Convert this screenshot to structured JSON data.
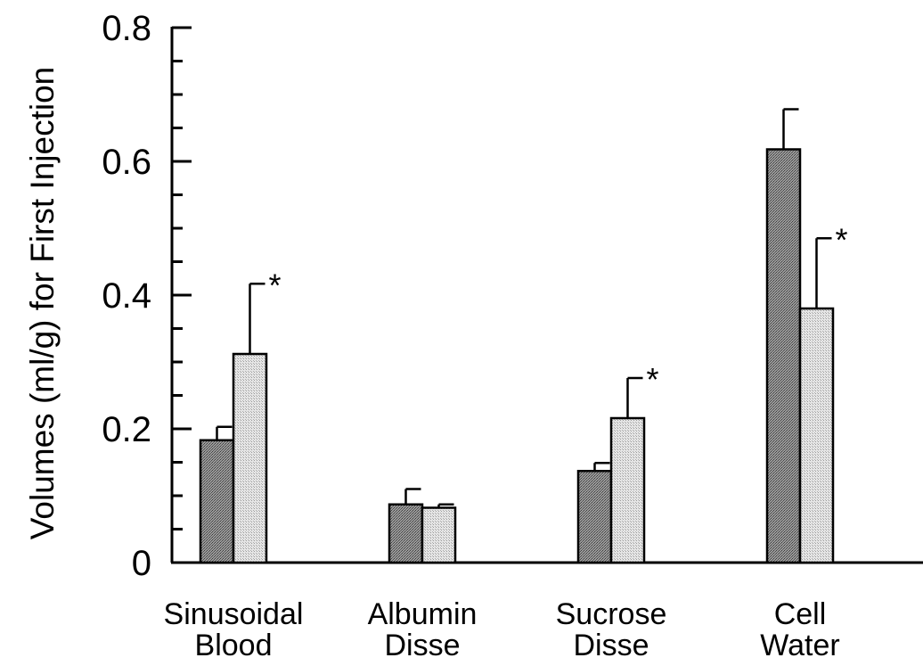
{
  "chart_data": {
    "type": "bar",
    "title": "",
    "xlabel": "",
    "ylabel": "Volumes (ml/g) for First Injection",
    "ylim": [
      0,
      0.8
    ],
    "yticks": [
      {
        "value": 0,
        "label": "0"
      },
      {
        "value": 0.2,
        "label": "0.2"
      },
      {
        "value": 0.4,
        "label": "0.4"
      },
      {
        "value": 0.6,
        "label": "0.6"
      },
      {
        "value": 0.8,
        "label": "0.8"
      }
    ],
    "y_minor_step": 0.05,
    "grid": false,
    "legend": "none",
    "categories": [
      [
        "Sinusoidal",
        "Blood"
      ],
      [
        "Albumin",
        "Disse"
      ],
      [
        "Sucrose",
        "Disse"
      ],
      [
        "Cell",
        "Water"
      ]
    ],
    "series": [
      {
        "values": [
          0.183,
          0.087,
          0.137,
          0.618
        ],
        "errors": [
          0.02,
          0.023,
          0.012,
          0.06
        ],
        "color": "#8a8a8a"
      },
      {
        "values": [
          0.312,
          0.082,
          0.216,
          0.38
        ],
        "errors": [
          0.105,
          0.005,
          0.06,
          0.105
        ],
        "color": "#dcdcdc"
      }
    ],
    "annotations": [
      {
        "text": "*",
        "category": 0,
        "series": 1
      },
      {
        "text": "*",
        "category": 2,
        "series": 1
      },
      {
        "text": "*",
        "category": 3,
        "series": 1
      }
    ]
  }
}
